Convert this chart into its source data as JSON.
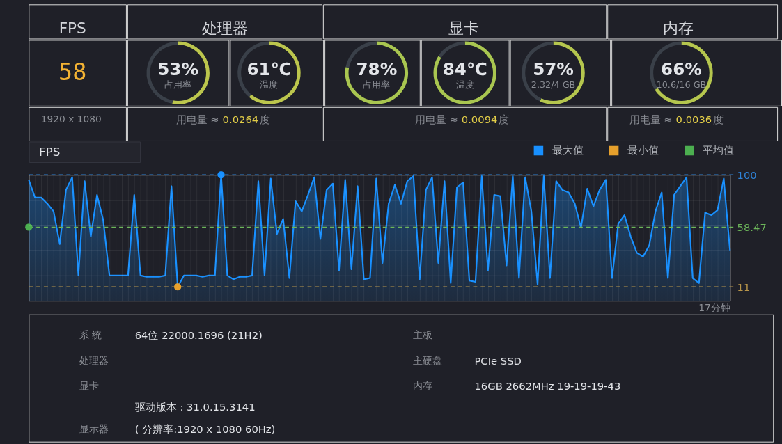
{
  "chart_data": [
    {
      "type": "other",
      "title": "FPS"
    },
    {
      "type": "other",
      "title": "处理器"
    },
    {
      "type": "other",
      "title": "显卡"
    },
    {
      "type": "other",
      "title": "内存"
    },
    {
      "type": "other",
      "annotations": [
        "58"
      ]
    },
    {
      "type": "donut",
      "categories": [
        "占用率",
        null
      ],
      "values": [
        53,
        47
      ],
      "colors": [
        "#bcc64d",
        "#3a4049"
      ],
      "value_labels": [
        "53%",
        null
      ]
    },
    {
      "type": "donut",
      "categories": [
        "温度",
        null
      ],
      "values": [
        61,
        39
      ],
      "colors": [
        "#bcc64d",
        "#3a4049"
      ],
      "value_labels": [
        "61℃",
        null
      ]
    },
    {
      "type": "donut",
      "categories": [
        "占用率",
        null
      ],
      "values": [
        78,
        22
      ],
      "colors": [
        "#a9c650",
        "#3a4049"
      ],
      "value_labels": [
        "78%",
        null
      ]
    },
    {
      "type": "donut",
      "categories": [
        "温度",
        null
      ],
      "values": [
        84,
        16
      ],
      "colors": [
        "#a9c650",
        "#3a4049"
      ],
      "value_labels": [
        "84℃",
        null
      ]
    },
    {
      "type": "donut",
      "categories": [
        "2.32/4 GB",
        null
      ],
      "values": [
        57,
        43
      ],
      "colors": [
        "#b5c64e",
        "#3a4049"
      ],
      "value_labels": [
        "57%",
        null
      ]
    },
    {
      "type": "donut",
      "categories": [
        "10.6/16 GB",
        null
      ],
      "values": [
        66,
        34
      ],
      "colors": [
        "#b5c64e",
        "#3a4049"
      ],
      "value_labels": [
        "66%",
        null
      ]
    },
    {
      "type": "other",
      "annotations": [
        "1920 x 1080"
      ]
    },
    {
      "type": "other",
      "annotations": [
        "用电量 ≈",
        "0.0264",
        "度"
      ]
    },
    {
      "type": "other",
      "annotations": [
        "用电量 ≈",
        "0.0094",
        "度"
      ]
    },
    {
      "type": "other",
      "annotations": [
        "用电量 ≈",
        "0.0036",
        "度"
      ]
    },
    {
      "type": "area",
      "title": "FPS",
      "xlabel": "17分钟",
      "categories": [
        null,
        null,
        null,
        null,
        null,
        null,
        null,
        null,
        null,
        null,
        null,
        null,
        null,
        null,
        null,
        null,
        null,
        null,
        null,
        null,
        null,
        null,
        null,
        null,
        null,
        null,
        null,
        null,
        null,
        null,
        null,
        null,
        null,
        null,
        null,
        null,
        null,
        null,
        null,
        null,
        null,
        null,
        null,
        null,
        null,
        null,
        null,
        null,
        null,
        null,
        null,
        null,
        null,
        null,
        null,
        null,
        null,
        null,
        null,
        null,
        null,
        null,
        null,
        null,
        null,
        null,
        null,
        null,
        null,
        null,
        null,
        null,
        null,
        null,
        null,
        null,
        null,
        null,
        null,
        null,
        null,
        null,
        null,
        null,
        null,
        null,
        null,
        null,
        null,
        null,
        null,
        null,
        null,
        null,
        null,
        null,
        null,
        null,
        null,
        null,
        null,
        null,
        null,
        null,
        null,
        null,
        null,
        null,
        null,
        null,
        null,
        null,
        null,
        null
      ],
      "ylim": [
        0,
        100
      ],
      "yticks": [
        {
          "value": 0,
          "label": null
        },
        {
          "value": 11,
          "label": "11"
        },
        {
          "value": 20,
          "label": null
        },
        {
          "value": 40,
          "label": null
        },
        {
          "value": 58.47,
          "label": "58.47"
        },
        {
          "value": 60,
          "label": null
        },
        {
          "value": 80,
          "label": null
        },
        {
          "value": 100,
          "label": "100"
        }
      ],
      "grid": true,
      "tick_labels": "y",
      "legend": "top right",
      "series": [
        {
          "type": "area",
          "color": "#1890ff",
          "values": [
            96,
            82,
            82,
            77,
            71,
            45,
            88,
            98,
            20,
            95,
            51,
            84,
            64,
            20,
            20,
            20,
            20,
            84,
            20,
            19,
            19,
            19,
            20,
            91,
            11,
            20,
            20,
            20,
            19,
            20,
            20,
            100,
            20,
            17,
            19,
            19,
            20,
            95,
            20,
            97,
            53,
            65,
            18,
            79,
            71,
            84,
            98,
            49,
            88,
            93,
            24,
            96,
            25,
            91,
            17,
            18,
            97,
            30,
            77,
            92,
            77,
            95,
            99,
            17,
            88,
            98,
            30,
            95,
            14,
            90,
            94,
            16,
            15,
            99,
            24,
            84,
            83,
            28,
            99,
            18,
            98,
            71,
            13,
            99,
            18,
            95,
            88,
            86,
            77,
            58,
            89,
            75,
            88,
            96,
            18,
            61,
            68,
            51,
            38,
            35,
            44,
            71,
            86,
            18,
            84,
            91,
            98,
            18,
            14,
            70,
            68,
            72,
            97,
            40
          ]
        },
        {
          "name": "最大值",
          "type": "scatter",
          "marker": "circle",
          "color": "#1890ff",
          "values": [
            null,
            null,
            null,
            null,
            null,
            null,
            null,
            null,
            null,
            null,
            null,
            null,
            null,
            null,
            null,
            null,
            null,
            null,
            null,
            null,
            null,
            null,
            null,
            null,
            null,
            null,
            null,
            null,
            null,
            null,
            null,
            100,
            null,
            null,
            null,
            null,
            null,
            null,
            null,
            null,
            null,
            null,
            null,
            null,
            null,
            null,
            null,
            null,
            null,
            null,
            null,
            null,
            null,
            null,
            null,
            null,
            null,
            null,
            null,
            null,
            null,
            null,
            null,
            null,
            null,
            null,
            null,
            null,
            null,
            null,
            null,
            null,
            null,
            null,
            null,
            null,
            null,
            null,
            null,
            null,
            null,
            null,
            null,
            null,
            null,
            null,
            null,
            null,
            null,
            null,
            null,
            null,
            null,
            null,
            null,
            null,
            null,
            null,
            null,
            null,
            null,
            null,
            null,
            null,
            null,
            null,
            null,
            null,
            null,
            null,
            null,
            null,
            null,
            null
          ]
        },
        {
          "name": "最小值",
          "type": "scatter",
          "marker": "circle",
          "color": "#e6a02c",
          "values": [
            null,
            null,
            null,
            null,
            null,
            null,
            null,
            null,
            null,
            null,
            null,
            null,
            null,
            null,
            null,
            null,
            null,
            null,
            null,
            null,
            null,
            null,
            null,
            null,
            11,
            null,
            null,
            null,
            null,
            null,
            null,
            null,
            null,
            null,
            null,
            null,
            null,
            null,
            null,
            null,
            null,
            null,
            null,
            null,
            null,
            null,
            null,
            null,
            null,
            null,
            null,
            null,
            null,
            null,
            null,
            null,
            null,
            null,
            null,
            null,
            null,
            null,
            null,
            null,
            null,
            null,
            null,
            null,
            null,
            null,
            null,
            null,
            null,
            null,
            null,
            null,
            null,
            null,
            null,
            null,
            null,
            null,
            null,
            null,
            null,
            null,
            null,
            null,
            null,
            null,
            null,
            null,
            null,
            null,
            null,
            null,
            null,
            null,
            null,
            null,
            null,
            null,
            null,
            null,
            null,
            null,
            null,
            null,
            null,
            null,
            null,
            null,
            null,
            null
          ]
        },
        {
          "name": "平均值",
          "type": "scatter",
          "marker": "circle",
          "color": "#4caf50",
          "values": [
            58.47,
            null,
            null,
            null,
            null,
            null,
            null,
            null,
            null,
            null,
            null,
            null,
            null,
            null,
            null,
            null,
            null,
            null,
            null,
            null,
            null,
            null,
            null,
            null,
            null,
            null,
            null,
            null,
            null,
            null,
            null,
            null,
            null,
            null,
            null,
            null,
            null,
            null,
            null,
            null,
            null,
            null,
            null,
            null,
            null,
            null,
            null,
            null,
            null,
            null,
            null,
            null,
            null,
            null,
            null,
            null,
            null,
            null,
            null,
            null,
            null,
            null,
            null,
            null,
            null,
            null,
            null,
            null,
            null,
            null,
            null,
            null,
            null,
            null,
            null,
            null,
            null,
            null,
            null,
            null,
            null,
            null,
            null,
            null,
            null,
            null,
            null,
            null,
            null,
            null,
            null,
            null,
            null,
            null,
            null,
            null,
            null,
            null,
            null,
            null,
            null,
            null,
            null,
            null,
            null,
            null,
            null,
            null,
            null,
            null,
            null,
            null,
            null,
            null
          ]
        }
      ],
      "ref_lines": [
        {
          "axis": "y",
          "value": 100,
          "color": "#2f82d6",
          "line_style": "dashed"
        },
        {
          "axis": "y",
          "value": 58.47,
          "color": "#6cb55a",
          "line_style": "dashed"
        },
        {
          "axis": "y",
          "value": 11,
          "color": "#b8954a",
          "line_style": "dashed"
        }
      ]
    },
    {
      "type": "other",
      "annotations": [
        "系 统",
        "64位 22000.1696 (21H2)",
        "主板",
        null,
        "处理器",
        null,
        "主硬盘",
        "PCIe SSD",
        "显卡",
        null,
        "内存",
        "16GB 2662MHz 19-19-19-43",
        null,
        "驱动版本 : 31.0.15.3141",
        null,
        null,
        "显示器",
        "( 分辨率:1920 x 1080 60Hz)",
        null,
        null
      ]
    }
  ]
}
